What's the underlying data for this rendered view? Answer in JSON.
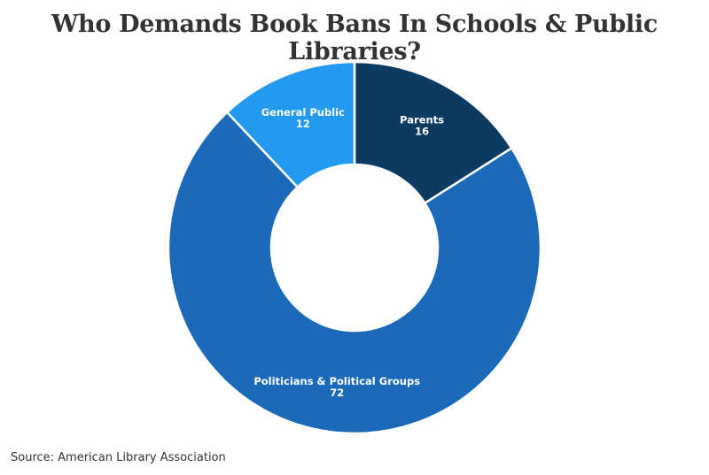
{
  "chart_data": {
    "type": "pie",
    "title": "Who Demands Book Bans In Schools & Public Libraries?",
    "source": "Source: American Library Association",
    "slices": [
      {
        "label": "Parents",
        "value": 16,
        "value_label": "16",
        "color": "#0b3b61"
      },
      {
        "label": "Politicians & Political Groups",
        "value": 72,
        "value_label": "72",
        "color": "#1b6aba"
      },
      {
        "label": "General Public",
        "value": 12,
        "value_label": "12",
        "color": "#2499f0"
      }
    ],
    "style": "donut",
    "start": "top, clockwise"
  }
}
